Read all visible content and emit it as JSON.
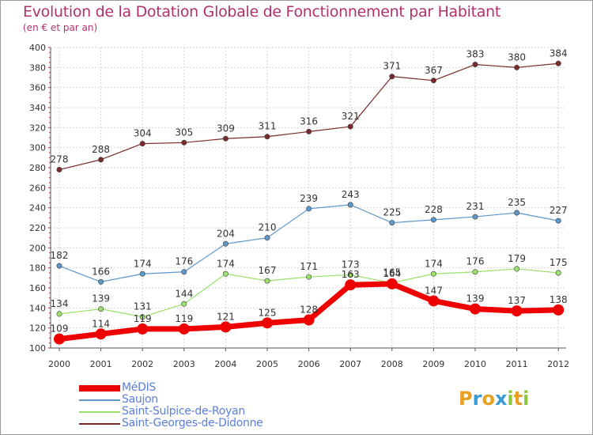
{
  "title": "Evolution de la Dotation Globale de Fonctionnement par Habitant",
  "subtitle": "(en € et par an)",
  "logo": {
    "text": "Proxiti",
    "letters": [
      {
        "ch": "P",
        "color": "#e8a020"
      },
      {
        "ch": "r",
        "color": "#3a9ad6"
      },
      {
        "ch": "o",
        "color": "#e8a020"
      },
      {
        "ch": "x",
        "color": "#3a9ad6"
      },
      {
        "ch": "i",
        "color": "#8cc63f"
      },
      {
        "ch": "t",
        "color": "#e8a020"
      },
      {
        "ch": "i",
        "color": "#8cc63f"
      }
    ]
  },
  "chart_data": {
    "type": "line",
    "x": [
      "2000",
      "2001",
      "2002",
      "2003",
      "2004",
      "2005",
      "2006",
      "2007",
      "2008",
      "2009",
      "2010",
      "2011",
      "2012"
    ],
    "ylim": [
      100,
      400
    ],
    "yticks": [
      100,
      120,
      140,
      160,
      180,
      200,
      220,
      240,
      260,
      280,
      300,
      320,
      340,
      360,
      380,
      400
    ],
    "grid": true,
    "legend_position": "bottom-left",
    "series": [
      {
        "name": "MéDIS",
        "color": "#ee0000",
        "values": [
          109,
          114,
          119,
          119,
          121,
          125,
          128,
          163,
          164,
          147,
          139,
          137,
          138
        ]
      },
      {
        "name": "Saujon",
        "color": "#5c97c9",
        "values": [
          182,
          166,
          174,
          176,
          204,
          210,
          239,
          243,
          225,
          228,
          231,
          235,
          227
        ]
      },
      {
        "name": "Saint-Sulpice-de-Royan",
        "color": "#9ae06a",
        "values": [
          134,
          139,
          131,
          144,
          174,
          167,
          171,
          173,
          165,
          174,
          176,
          179,
          175
        ]
      },
      {
        "name": "Saint-Georges-de-Didonne",
        "color": "#7a2a2a",
        "values": [
          278,
          288,
          304,
          305,
          309,
          311,
          316,
          321,
          371,
          367,
          383,
          380,
          384
        ]
      }
    ],
    "point_labels": [
      [
        "109",
        "114",
        "119",
        "119",
        "121",
        "125",
        "128",
        "163",
        "164",
        "147",
        "139",
        "137",
        "138"
      ],
      [
        "182",
        "166",
        "174",
        "176",
        "204",
        "210",
        "239",
        "243",
        "225",
        "228",
        "231",
        "235",
        "227"
      ],
      [
        "134",
        "139",
        "131",
        "144",
        "174",
        "167",
        "171",
        "173",
        "165",
        "174",
        "176",
        "179",
        "175"
      ],
      [
        "278",
        "288",
        "304",
        "305",
        "309",
        "311",
        "316",
        "321",
        "371",
        "367",
        "383",
        "380",
        "384"
      ]
    ]
  }
}
